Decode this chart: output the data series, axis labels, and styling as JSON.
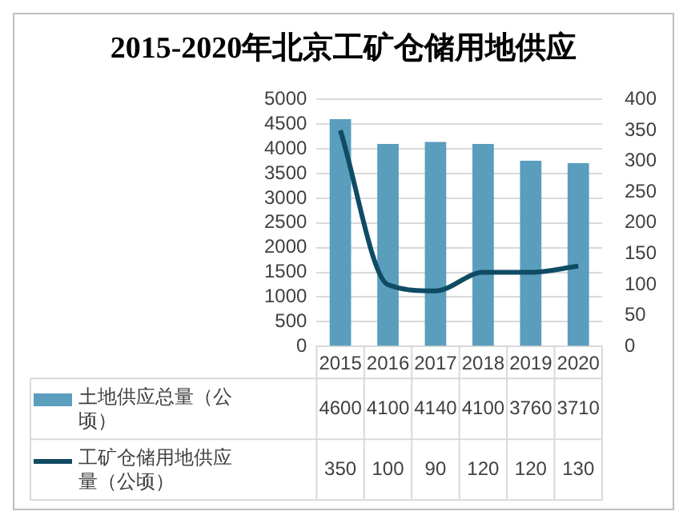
{
  "chart_data": {
    "type": "bar",
    "title": "2015-2020年北京工矿仓储用地供应",
    "categories": [
      "2015",
      "2016",
      "2017",
      "2018",
      "2019",
      "2020"
    ],
    "series": [
      {
        "name": "土地供应总量（公顷）",
        "color": "#5a9dbd",
        "values": [
          4600,
          4100,
          4140,
          4100,
          3760,
          3710
        ]
      },
      {
        "name": "工矿仓储用地供应量（公顷）",
        "type": "line",
        "axis": "y2",
        "color": "#0f4c64",
        "values": [
          350,
          100,
          90,
          120,
          120,
          130
        ]
      }
    ],
    "ylim": [
      0,
      5000
    ],
    "yticks": [
      0,
      500,
      1000,
      1500,
      2000,
      2500,
      3000,
      3500,
      4000,
      4500,
      5000
    ],
    "y2lim": [
      0,
      400
    ],
    "y2ticks": [
      0,
      50,
      100,
      150,
      200,
      250,
      300,
      350,
      400
    ],
    "grid": "y",
    "legend": "bottom",
    "data_labels": true,
    "marker": "none",
    "line_style": "solid"
  }
}
